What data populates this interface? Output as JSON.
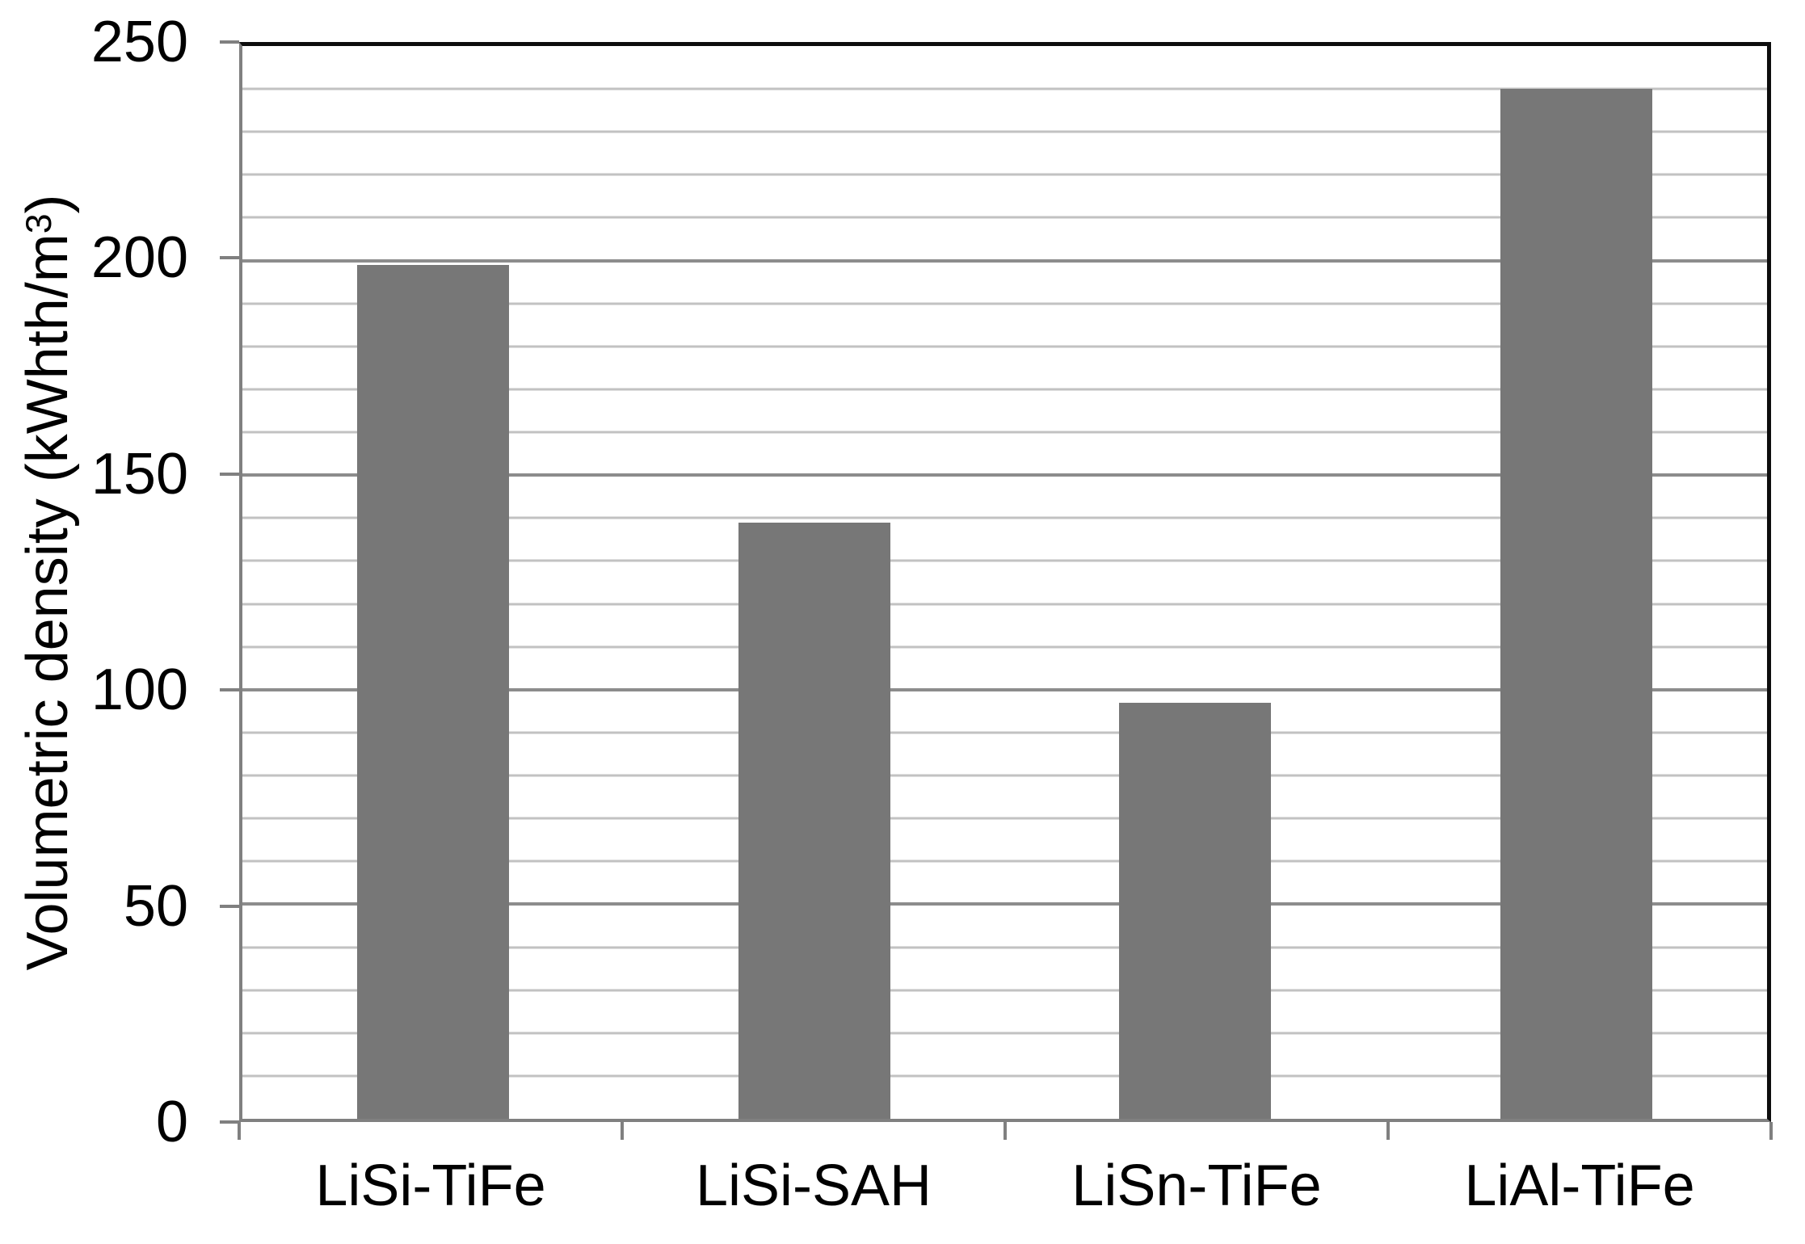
{
  "chart_data": {
    "type": "bar",
    "title": "",
    "categories": [
      "LiSi-TiFe",
      "LiSi-SAH",
      "LiSn-TiFe",
      "LiAl-TiFe"
    ],
    "values": [
      199,
      139,
      97,
      240
    ],
    "xlabel": "",
    "ylabel_plain": "Volumetric density (kWhth/m3)",
    "ylabel_parts": {
      "pre": "Volumetric density (kWhth/m",
      "sup": "3",
      "post": ")"
    },
    "ylim": [
      0,
      250
    ],
    "yticks": [
      0,
      50,
      100,
      150,
      200,
      250
    ],
    "ytick_major": 50,
    "ytick_minor": 10,
    "grid": "horizontal minor every 10 (light gray), major every 50 (gray), on",
    "legend": "none",
    "colors": {
      "bar": "#777777",
      "major_grid": "#8c8c8c",
      "minor_grid": "#c2c2c2",
      "axis": "#808080",
      "border": "#0d0d0d",
      "text": "#000000",
      "background": "#ffffff"
    }
  }
}
